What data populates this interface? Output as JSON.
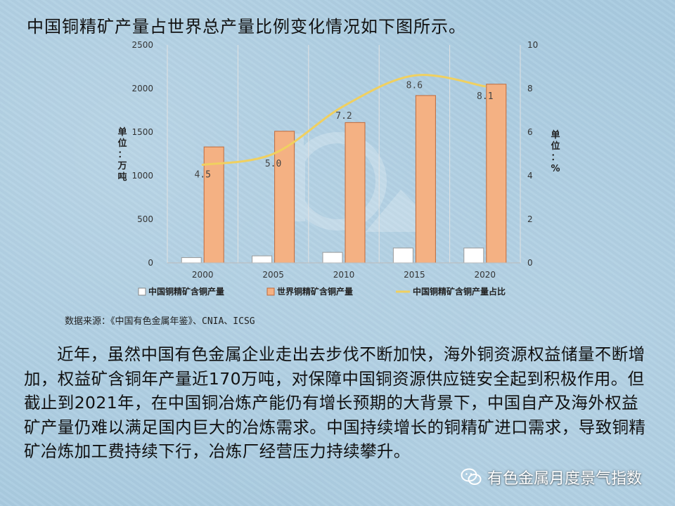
{
  "heading": "中国铜精矿产量占世界总产量比例变化情况如下图所示。",
  "chart_data": {
    "type": "bar",
    "categories": [
      "2000",
      "2005",
      "2010",
      "2015",
      "2020"
    ],
    "series": [
      {
        "name": "中国铜精矿含铜产量",
        "kind": "bar",
        "axis": "left",
        "color": "#ffffff",
        "values": [
          60,
          80,
          120,
          170,
          170
        ]
      },
      {
        "name": "世界铜精矿含铜产量",
        "kind": "bar",
        "axis": "left",
        "color": "#f4b183",
        "values": [
          1330,
          1510,
          1610,
          1920,
          2050
        ]
      },
      {
        "name": "中国铜精矿含铜产量占比",
        "kind": "line",
        "axis": "right",
        "color": "#f0d060",
        "values": [
          4.5,
          5.0,
          7.2,
          8.6,
          8.1
        ],
        "data_labels": [
          "4.5",
          "5.0",
          "7.2",
          "8.6",
          "8.1"
        ]
      }
    ],
    "ylim": [
      0,
      2500
    ],
    "y_ticks": [
      "0",
      "500",
      "1000",
      "1500",
      "2000",
      "2500"
    ],
    "y2lim": [
      0,
      10
    ],
    "y2_ticks": [
      "0",
      "2",
      "4",
      "6",
      "8",
      "10"
    ],
    "ylabel": "单位：万吨",
    "y2label": "单位：%",
    "grid": "vertical",
    "legend_position": "bottom"
  },
  "source": "数据来源：《中国有色金属年鉴》、CNIA、ICSG",
  "paragraph": "近年，虽然中国有色金属企业走出去步伐不断加快，海外铜资源权益储量不断增加，权益矿含铜年产量近170万吨，对保障中国铜资源供应链安全起到积极作用。但截止到2021年，在中国铜冶炼产能仍有增长预期的大背景下，中国自产及海外权益矿产量仍难以满足国内巨大的冶炼需求。中国持续增长的铜精矿进口需求，导致铜精矿冶炼加工费持续下行，冶炼厂经营压力持续攀升。",
  "badge": {
    "icon": "wechat-icon",
    "label": "有色金属月度景气指数"
  }
}
